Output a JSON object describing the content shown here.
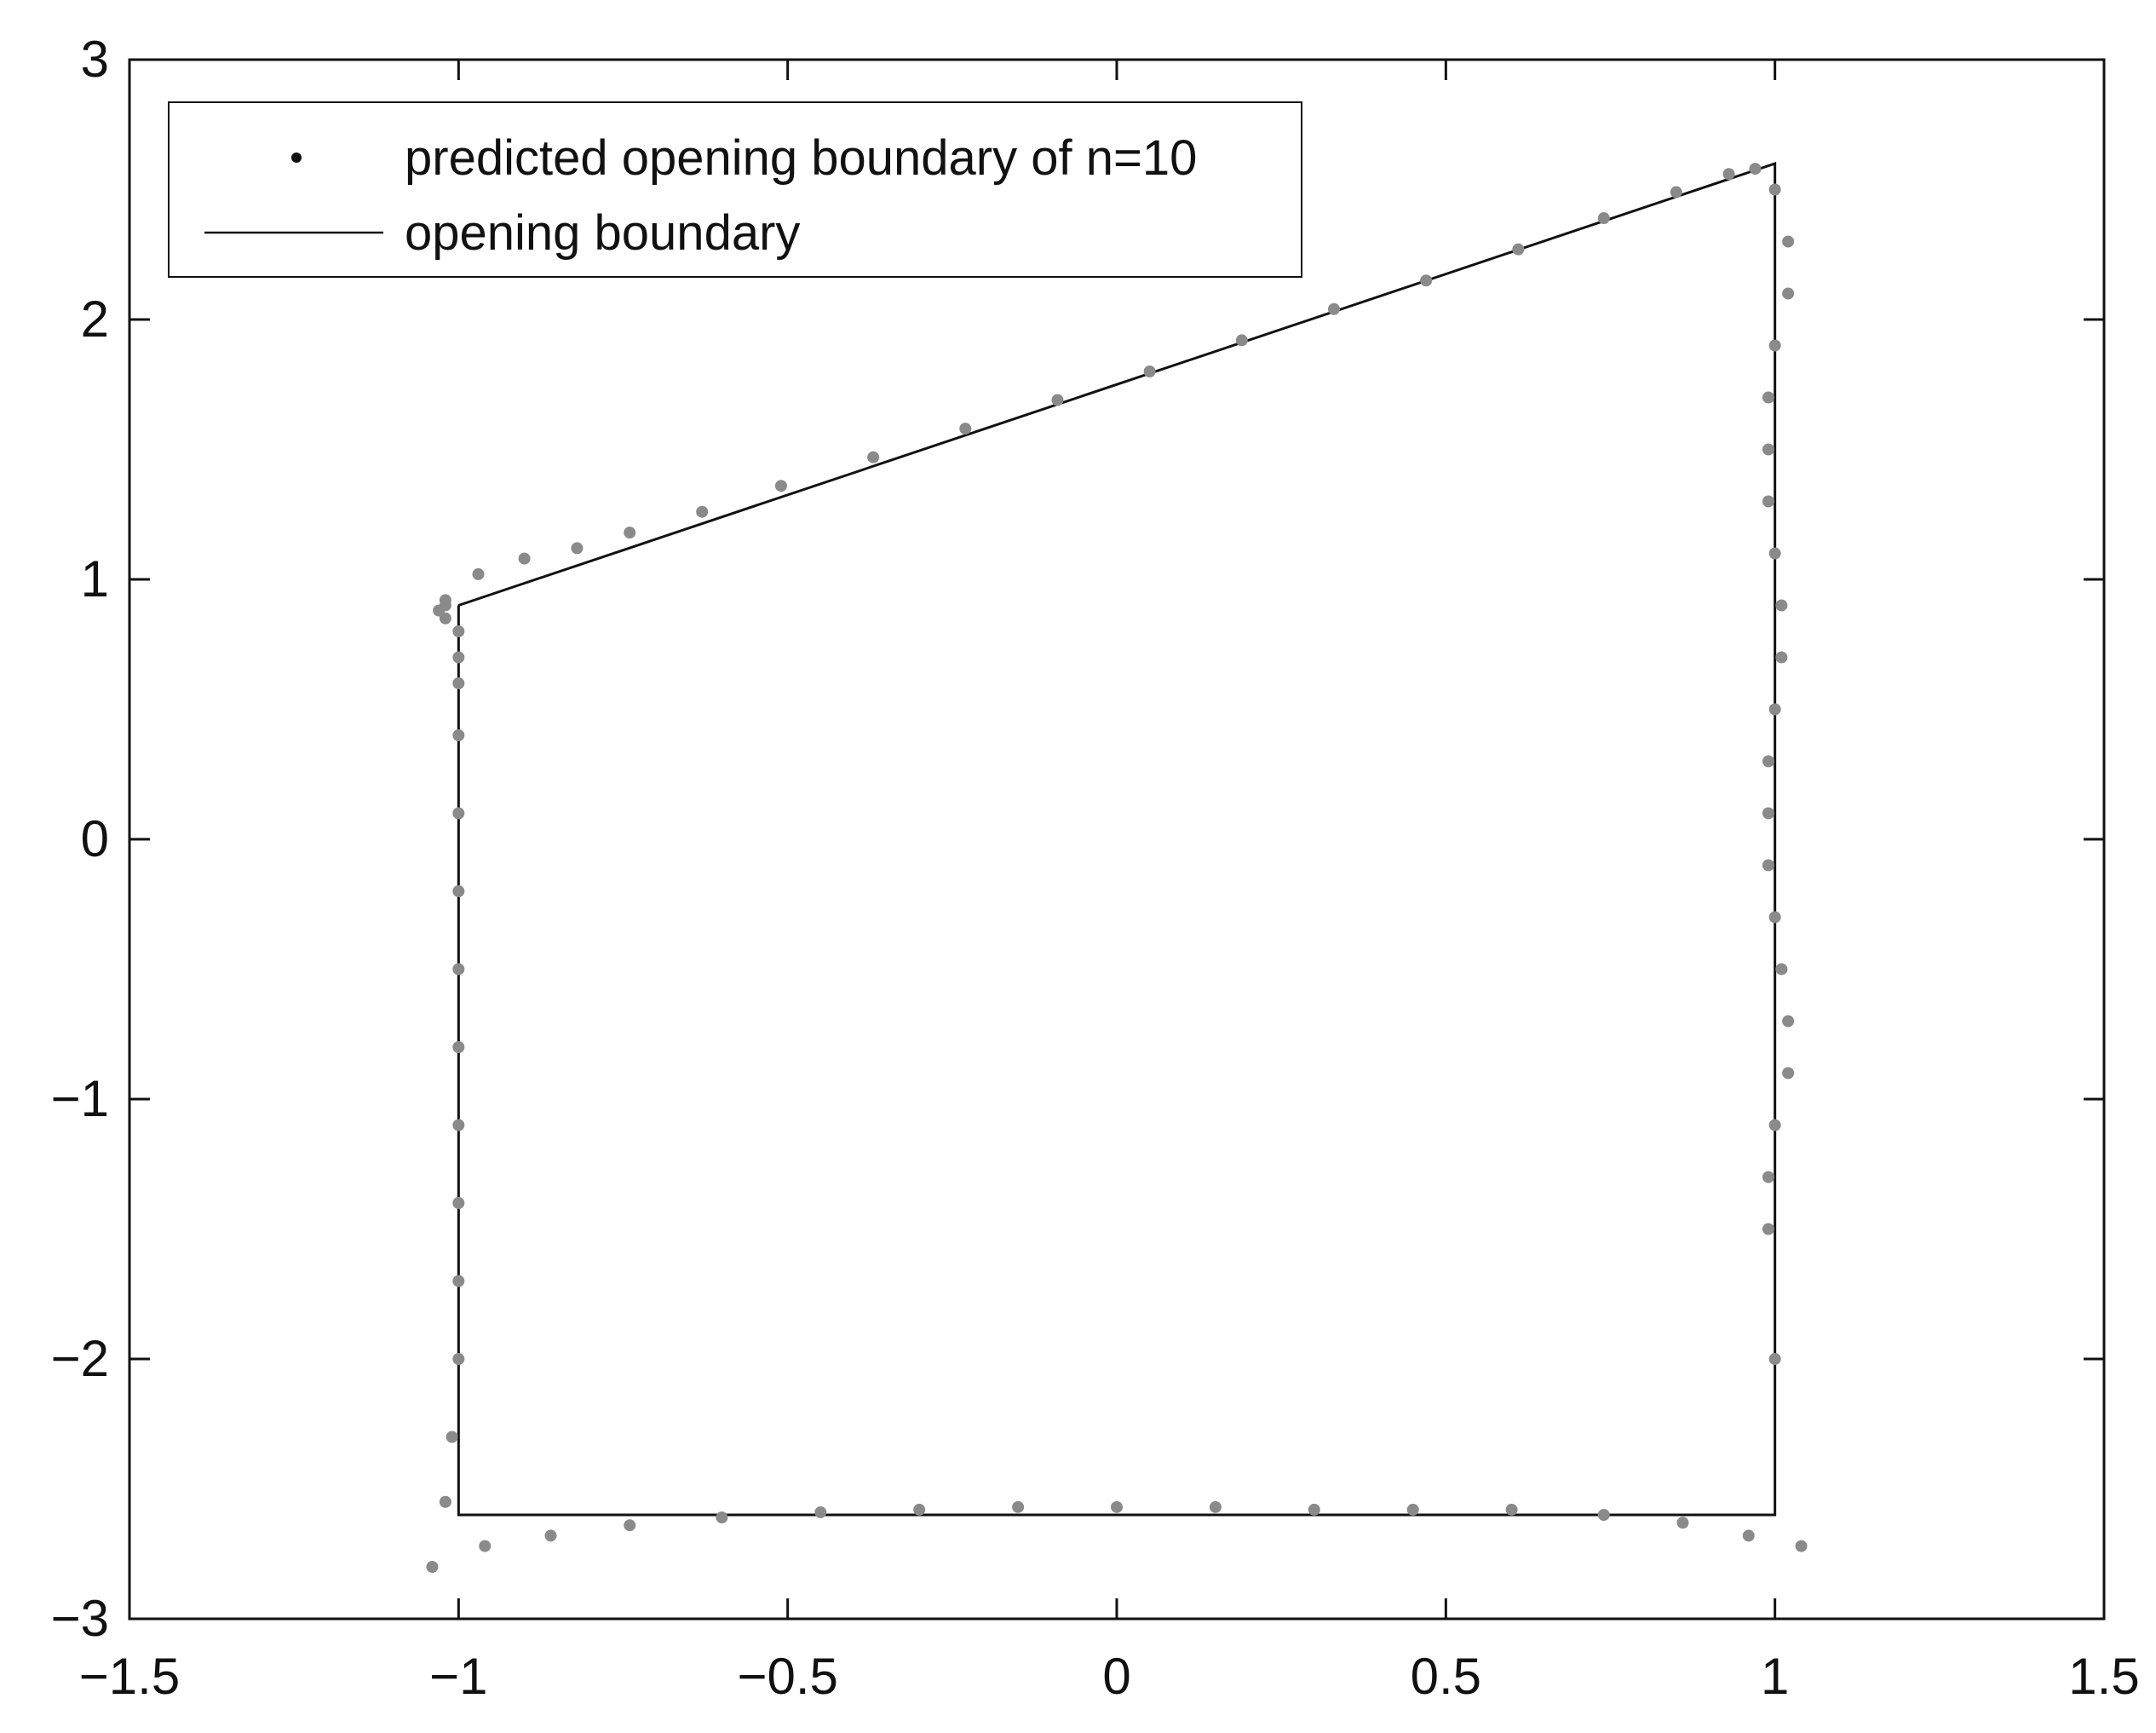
{
  "chart_data": {
    "type": "scatter",
    "title": "",
    "xlabel": "",
    "ylabel": "",
    "xlim": [
      -1.5,
      1.5
    ],
    "ylim": [
      -3,
      3
    ],
    "grid": false,
    "legend_position": "top-left",
    "x_ticks": [
      -1.5,
      -1.0,
      -0.5,
      0,
      0.5,
      1.0,
      1.5
    ],
    "x_tick_labels": [
      "−1.5",
      "−1",
      "−0.5",
      "0",
      "0.5",
      "1",
      "1.5"
    ],
    "y_ticks": [
      3,
      2,
      1,
      0,
      -1,
      -2,
      -3
    ],
    "y_tick_labels": [
      "3",
      "2",
      "1",
      "0",
      "−1",
      "−2",
      "−3"
    ],
    "legend": [
      {
        "label": "predicted opening boundary of n=10",
        "marker": "dot"
      },
      {
        "label": "opening boundary",
        "marker": "line"
      }
    ],
    "colors": {
      "predicted": "#8a8a8a",
      "boundary": "#111111",
      "axes": "#111111"
    },
    "series": [
      {
        "name": "opening boundary",
        "style": "line",
        "x": [
          -1.0,
          1.0,
          1.0,
          -1.0,
          -1.0
        ],
        "y": [
          0.9,
          2.6,
          -2.6,
          -2.6,
          0.9
        ]
      },
      {
        "name": "predicted opening boundary of n=10",
        "style": "scatter",
        "x": [
          -1.02,
          -0.97,
          -0.9,
          -0.82,
          -0.74,
          -0.63,
          -0.51,
          -0.37,
          -0.23,
          -0.09,
          0.05,
          0.19,
          0.33,
          0.47,
          0.61,
          0.74,
          0.85,
          0.93,
          0.97,
          1.0,
          1.02,
          1.02,
          1.0,
          0.99,
          0.99,
          0.99,
          1.0,
          1.01,
          1.01,
          1.0,
          0.99,
          0.99,
          0.99,
          1.0,
          1.01,
          1.02,
          1.02,
          1.0,
          0.99,
          0.99,
          1.0,
          1.04,
          0.96,
          0.86,
          0.74,
          0.6,
          0.45,
          0.3,
          0.15,
          0.0,
          -0.15,
          -0.3,
          -0.45,
          -0.6,
          -0.74,
          -0.86,
          -0.96,
          -1.04,
          -1.02,
          -1.01,
          -1.0,
          -1.0,
          -1.0,
          -1.0,
          -1.0,
          -1.0,
          -1.0,
          -1.0,
          -1.0,
          -1.0,
          -1.0,
          -1.0,
          -1.02,
          -1.03,
          -1.02
        ],
        "y": [
          0.92,
          1.02,
          1.08,
          1.12,
          1.18,
          1.26,
          1.36,
          1.47,
          1.58,
          1.69,
          1.8,
          1.92,
          2.04,
          2.15,
          2.27,
          2.39,
          2.49,
          2.56,
          2.58,
          2.5,
          2.3,
          2.1,
          1.9,
          1.7,
          1.5,
          1.3,
          1.1,
          0.9,
          0.7,
          0.5,
          0.3,
          0.1,
          -0.1,
          -0.3,
          -0.5,
          -0.7,
          -0.9,
          -1.1,
          -1.3,
          -1.5,
          -2.0,
          -2.72,
          -2.68,
          -2.63,
          -2.6,
          -2.58,
          -2.58,
          -2.58,
          -2.57,
          -2.57,
          -2.57,
          -2.58,
          -2.59,
          -2.61,
          -2.64,
          -2.68,
          -2.72,
          -2.8,
          -2.55,
          -2.3,
          -2.0,
          -1.7,
          -1.4,
          -1.1,
          -0.8,
          -0.5,
          -0.2,
          0.1,
          0.4,
          0.6,
          0.7,
          0.8,
          0.85,
          0.88,
          0.9
        ]
      }
    ]
  }
}
